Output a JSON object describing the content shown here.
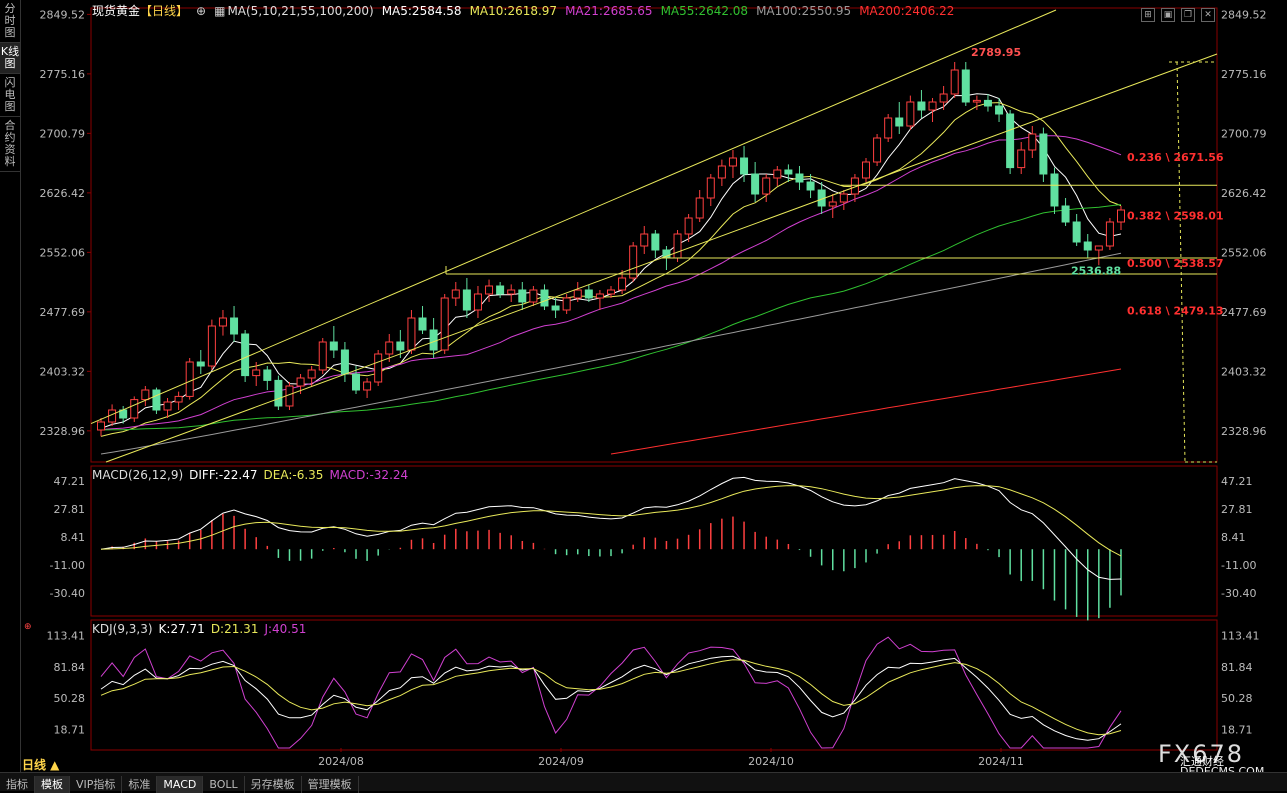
{
  "sidebar": {
    "tabs": [
      {
        "label": "分时图",
        "active": false
      },
      {
        "label": "K线图",
        "active": true
      },
      {
        "label": "闪电图",
        "active": false
      },
      {
        "label": "合约资料",
        "active": false
      }
    ]
  },
  "header": {
    "instrument": "现货黄金",
    "period_tag": "【日线】",
    "ma_label": "MA(5,10,21,55,100,200)",
    "ma5": "MA5:2584.58",
    "ma10": "MA10:2618.97",
    "ma21": "MA21:2685.65",
    "ma55": "MA55:2642.08",
    "ma100": "MA100:2550.95",
    "ma200": "MA200:2406.22"
  },
  "colors": {
    "ma5": "#ffffff",
    "ma10": "#e8e85a",
    "ma21": "#d040d0",
    "ma55": "#30c030",
    "ma100": "#9a9a9a",
    "ma200": "#ff3030",
    "up": "#ff4040",
    "down": "#60e0a0"
  },
  "price_axis": {
    "ticks": [
      "2849.52",
      "2775.16",
      "2700.79",
      "2626.42",
      "2552.06",
      "2477.69",
      "2403.32",
      "2328.96"
    ]
  },
  "annotations": {
    "high": "2789.95",
    "low": "2536.88",
    "fib": [
      {
        "label": "0.236 \\ 2671.56",
        "price": 2671.56
      },
      {
        "label": "0.382 \\ 2598.01",
        "price": 2598.01
      },
      {
        "label": "0.500 \\ 2538.57",
        "price": 2538.57
      },
      {
        "label": "0.618 \\ 2479.13",
        "price": 2479.13
      }
    ]
  },
  "macd": {
    "title": "MACD(26,12,9)",
    "diff": "DIFF:-22.47",
    "dea": "DEA:-6.35",
    "macd": "MACD:-32.24",
    "ticks": [
      "47.21",
      "27.81",
      "8.41",
      "-11.00",
      "-30.40"
    ]
  },
  "kdj": {
    "title": "KDJ(9,3,3)",
    "k": "K:27.71",
    "d": "D:21.31",
    "j": "J:40.51",
    "ticks": [
      "113.41",
      "81.84",
      "50.28",
      "18.71"
    ]
  },
  "x_axis": {
    "labels": [
      "2024/08",
      "2024/09",
      "2024/10",
      "2024/11"
    ]
  },
  "period": "日线 ▲",
  "bottom_tabs": [
    {
      "label": "指标",
      "active": false
    },
    {
      "label": "模板",
      "active": true
    },
    {
      "label": "VIP指标",
      "active": false
    },
    {
      "label": "标准",
      "active": false
    },
    {
      "label": "MACD",
      "active": true
    },
    {
      "label": "BOLL",
      "active": false
    },
    {
      "label": "另存模板",
      "active": false
    },
    {
      "label": "管理模板",
      "active": false
    }
  ],
  "watermark": {
    "brand": "FX678",
    "cn": "汇通财经",
    "site": "DEDECMS.COM"
  },
  "chart_data": {
    "type": "candlestick",
    "price_range": [
      2290,
      2855
    ],
    "ohlc": [
      [
        2330,
        2345,
        2322,
        2340
      ],
      [
        2340,
        2362,
        2335,
        2355
      ],
      [
        2355,
        2360,
        2338,
        2345
      ],
      [
        2345,
        2372,
        2340,
        2368
      ],
      [
        2368,
        2385,
        2360,
        2380
      ],
      [
        2380,
        2383,
        2350,
        2355
      ],
      [
        2355,
        2370,
        2345,
        2365
      ],
      [
        2365,
        2378,
        2355,
        2372
      ],
      [
        2372,
        2420,
        2368,
        2415
      ],
      [
        2415,
        2430,
        2400,
        2410
      ],
      [
        2410,
        2468,
        2405,
        2460
      ],
      [
        2460,
        2480,
        2448,
        2470
      ],
      [
        2470,
        2485,
        2440,
        2450
      ],
      [
        2450,
        2455,
        2390,
        2398
      ],
      [
        2398,
        2415,
        2385,
        2405
      ],
      [
        2405,
        2410,
        2380,
        2392
      ],
      [
        2392,
        2398,
        2355,
        2360
      ],
      [
        2360,
        2390,
        2355,
        2385
      ],
      [
        2385,
        2400,
        2375,
        2395
      ],
      [
        2395,
        2410,
        2385,
        2405
      ],
      [
        2405,
        2445,
        2400,
        2440
      ],
      [
        2440,
        2460,
        2420,
        2430
      ],
      [
        2430,
        2440,
        2390,
        2400
      ],
      [
        2400,
        2410,
        2375,
        2380
      ],
      [
        2380,
        2395,
        2370,
        2390
      ],
      [
        2390,
        2430,
        2385,
        2425
      ],
      [
        2425,
        2450,
        2415,
        2440
      ],
      [
        2440,
        2455,
        2420,
        2430
      ],
      [
        2430,
        2480,
        2425,
        2470
      ],
      [
        2470,
        2485,
        2450,
        2455
      ],
      [
        2455,
        2470,
        2420,
        2430
      ],
      [
        2430,
        2500,
        2425,
        2495
      ],
      [
        2495,
        2515,
        2485,
        2505
      ],
      [
        2505,
        2520,
        2470,
        2480
      ],
      [
        2480,
        2510,
        2470,
        2500
      ],
      [
        2500,
        2518,
        2490,
        2510
      ],
      [
        2510,
        2515,
        2495,
        2500
      ],
      [
        2500,
        2512,
        2490,
        2505
      ],
      [
        2505,
        2515,
        2480,
        2490
      ],
      [
        2490,
        2510,
        2485,
        2505
      ],
      [
        2505,
        2512,
        2480,
        2485
      ],
      [
        2485,
        2495,
        2470,
        2480
      ],
      [
        2480,
        2500,
        2475,
        2495
      ],
      [
        2495,
        2515,
        2490,
        2505
      ],
      [
        2505,
        2512,
        2490,
        2495
      ],
      [
        2495,
        2505,
        2480,
        2500
      ],
      [
        2500,
        2510,
        2495,
        2505
      ],
      [
        2505,
        2530,
        2500,
        2520
      ],
      [
        2520,
        2565,
        2515,
        2560
      ],
      [
        2560,
        2585,
        2550,
        2575
      ],
      [
        2575,
        2580,
        2545,
        2555
      ],
      [
        2555,
        2560,
        2530,
        2545
      ],
      [
        2545,
        2580,
        2540,
        2575
      ],
      [
        2575,
        2600,
        2565,
        2595
      ],
      [
        2595,
        2630,
        2590,
        2620
      ],
      [
        2620,
        2650,
        2610,
        2645
      ],
      [
        2645,
        2668,
        2635,
        2660
      ],
      [
        2660,
        2680,
        2645,
        2670
      ],
      [
        2670,
        2685,
        2640,
        2650
      ],
      [
        2650,
        2665,
        2615,
        2625
      ],
      [
        2625,
        2650,
        2615,
        2645
      ],
      [
        2645,
        2660,
        2635,
        2655
      ],
      [
        2655,
        2662,
        2640,
        2650
      ],
      [
        2650,
        2660,
        2630,
        2640
      ],
      [
        2640,
        2650,
        2620,
        2630
      ],
      [
        2630,
        2640,
        2600,
        2610
      ],
      [
        2610,
        2625,
        2595,
        2615
      ],
      [
        2615,
        2630,
        2605,
        2625
      ],
      [
        2625,
        2650,
        2615,
        2645
      ],
      [
        2645,
        2670,
        2640,
        2665
      ],
      [
        2665,
        2700,
        2660,
        2695
      ],
      [
        2695,
        2725,
        2690,
        2720
      ],
      [
        2720,
        2740,
        2700,
        2710
      ],
      [
        2710,
        2748,
        2705,
        2740
      ],
      [
        2740,
        2755,
        2720,
        2730
      ],
      [
        2730,
        2745,
        2715,
        2740
      ],
      [
        2740,
        2760,
        2730,
        2750
      ],
      [
        2750,
        2790,
        2745,
        2780
      ],
      [
        2780,
        2790,
        2735,
        2740
      ],
      [
        2740,
        2748,
        2730,
        2742
      ],
      [
        2742,
        2750,
        2728,
        2735
      ],
      [
        2735,
        2745,
        2715,
        2725
      ],
      [
        2725,
        2730,
        2650,
        2658
      ],
      [
        2658,
        2690,
        2650,
        2680
      ],
      [
        2680,
        2710,
        2670,
        2700
      ],
      [
        2700,
        2708,
        2640,
        2650
      ],
      [
        2650,
        2658,
        2600,
        2610
      ],
      [
        2610,
        2620,
        2585,
        2590
      ],
      [
        2590,
        2600,
        2560,
        2565
      ],
      [
        2565,
        2575,
        2545,
        2555
      ],
      [
        2555,
        2560,
        2536,
        2560
      ],
      [
        2560,
        2595,
        2555,
        2590
      ],
      [
        2590,
        2610,
        2580,
        2605
      ]
    ]
  }
}
